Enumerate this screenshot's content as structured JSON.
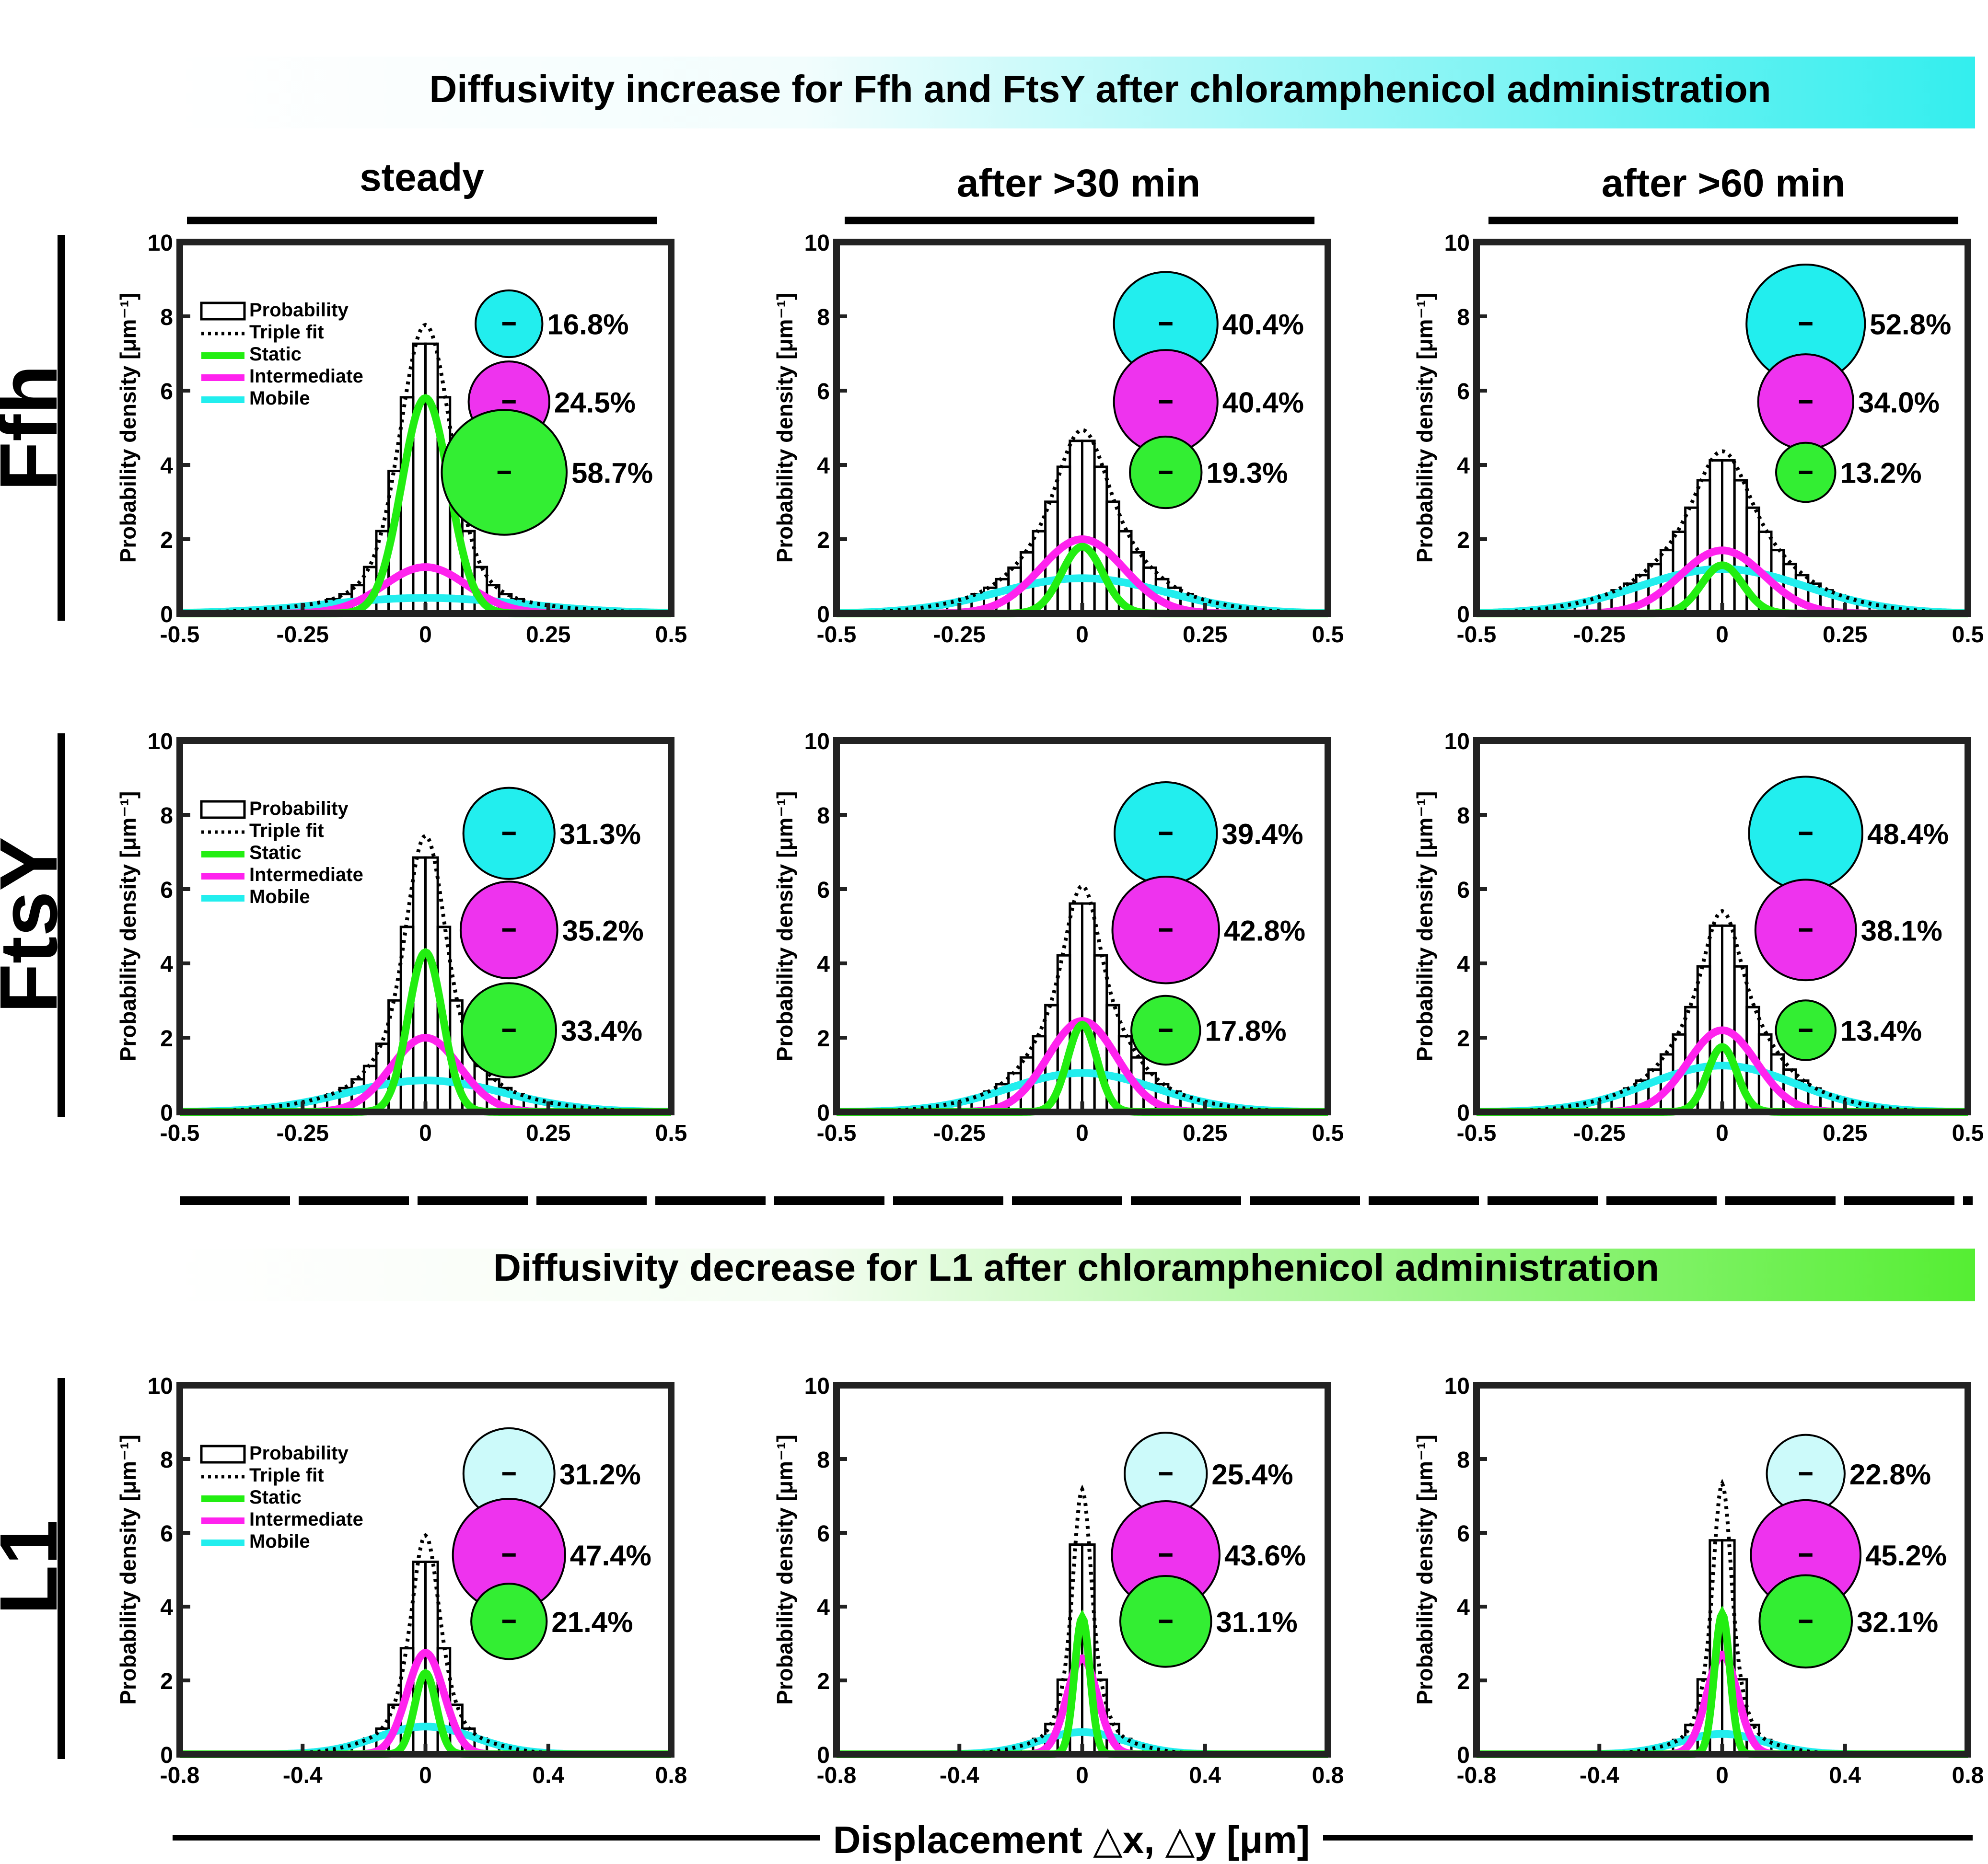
{
  "colors": {
    "histogram": "#000000",
    "fit": "#000000",
    "static": "#22ee11",
    "intermediate": "#ff22ee",
    "mobile": "#22eeee",
    "banner_cyan": "#33eeee",
    "banner_green": "#55ee33",
    "bubble_cyan_light": "#ccfafa",
    "bubble_magenta": "#ee33ee",
    "bubble_green": "#33ee33"
  },
  "figure": {
    "banner_top": "Diffusivity increase for Ffh and FtsY after chloramphenicol administration",
    "banner_bottom": "Diffusivity decrease for L1 after chloramphenicol administration",
    "x_axis_label": "Displacement △x, △y [μm]",
    "y_axis_label": "Probability density [μm⁻¹]",
    "column_titles": [
      "steady",
      "after >30 min",
      "after >60 min"
    ],
    "row_labels": [
      "Ffh",
      "FtsY",
      "L1"
    ],
    "legend": [
      "Probability",
      "Triple fit",
      "Static",
      "Intermediate",
      "Mobile"
    ]
  },
  "chart_data": [
    {
      "id": "ffh-steady",
      "type": "bar",
      "row": "Ffh",
      "condition": "steady",
      "xlim": [
        -0.5,
        0.5
      ],
      "ylim": [
        0,
        10
      ],
      "xticks": [
        "-0.5",
        "-0.25",
        "0",
        "0.25",
        "0.5"
      ],
      "yticks": [
        "0",
        "2",
        "4",
        "6",
        "8",
        "10"
      ],
      "components": {
        "static": {
          "amplitude": 5.8,
          "sigma": 0.048
        },
        "intermediate": {
          "amplitude": 1.25,
          "sigma": 0.085
        },
        "mobile": {
          "amplitude": 0.42,
          "sigma": 0.2
        }
      },
      "fractions": [
        {
          "component": "mobile",
          "label": "16.8%",
          "value": 16.8
        },
        {
          "component": "intermediate",
          "label": "24.5%",
          "value": 24.5
        },
        {
          "component": "static",
          "label": "58.7%",
          "value": 58.7
        }
      ],
      "legend_shown": true
    },
    {
      "id": "ffh-30",
      "type": "bar",
      "row": "Ffh",
      "condition": "after >30 min",
      "xlim": [
        -0.5,
        0.5
      ],
      "ylim": [
        0,
        10
      ],
      "xticks": [
        "-0.5",
        "-0.25",
        "0",
        "0.25",
        "0.5"
      ],
      "yticks": [
        "0",
        "2",
        "4",
        "6",
        "8",
        "10"
      ],
      "components": {
        "static": {
          "amplitude": 1.8,
          "sigma": 0.042
        },
        "intermediate": {
          "amplitude": 2.0,
          "sigma": 0.085
        },
        "mobile": {
          "amplitude": 0.95,
          "sigma": 0.17
        }
      },
      "fractions": [
        {
          "component": "mobile",
          "label": "40.4%",
          "value": 40.4
        },
        {
          "component": "intermediate",
          "label": "40.4%",
          "value": 40.4
        },
        {
          "component": "static",
          "label": "19.3%",
          "value": 19.3
        }
      ],
      "legend_shown": false
    },
    {
      "id": "ffh-60",
      "type": "bar",
      "row": "Ffh",
      "condition": "after >60 min",
      "xlim": [
        -0.5,
        0.5
      ],
      "ylim": [
        0,
        10
      ],
      "xticks": [
        "-0.5",
        "-0.25",
        "0",
        "0.25",
        "0.5"
      ],
      "yticks": [
        "0",
        "2",
        "4",
        "6",
        "8",
        "10"
      ],
      "components": {
        "static": {
          "amplitude": 1.3,
          "sigma": 0.042
        },
        "intermediate": {
          "amplitude": 1.7,
          "sigma": 0.085
        },
        "mobile": {
          "amplitude": 1.2,
          "sigma": 0.17
        }
      },
      "fractions": [
        {
          "component": "mobile",
          "label": "52.8%",
          "value": 52.8
        },
        {
          "component": "intermediate",
          "label": "34.0%",
          "value": 34.0
        },
        {
          "component": "static",
          "label": "13.2%",
          "value": 13.2
        }
      ],
      "legend_shown": false
    },
    {
      "id": "ftsy-steady",
      "type": "bar",
      "row": "FtsY",
      "condition": "steady",
      "xlim": [
        -0.5,
        0.5
      ],
      "ylim": [
        0,
        10
      ],
      "xticks": [
        "-0.5",
        "-0.25",
        "0",
        "0.25",
        "0.5"
      ],
      "yticks": [
        "0",
        "2",
        "4",
        "6",
        "8",
        "10"
      ],
      "components": {
        "static": {
          "amplitude": 4.3,
          "sigma": 0.035
        },
        "intermediate": {
          "amplitude": 2.0,
          "sigma": 0.07
        },
        "mobile": {
          "amplitude": 0.85,
          "sigma": 0.16
        }
      },
      "fractions": [
        {
          "component": "mobile",
          "label": "31.3%",
          "value": 31.3
        },
        {
          "component": "intermediate",
          "label": "35.2%",
          "value": 35.2
        },
        {
          "component": "static",
          "label": "33.4%",
          "value": 33.4
        }
      ],
      "legend_shown": true
    },
    {
      "id": "ftsy-30",
      "type": "bar",
      "row": "FtsY",
      "condition": "after >30 min",
      "xlim": [
        -0.5,
        0.5
      ],
      "ylim": [
        0,
        10
      ],
      "xticks": [
        "-0.5",
        "-0.25",
        "0",
        "0.25",
        "0.5"
      ],
      "yticks": [
        "0",
        "2",
        "4",
        "6",
        "8",
        "10"
      ],
      "components": {
        "static": {
          "amplitude": 2.35,
          "sigma": 0.03
        },
        "intermediate": {
          "amplitude": 2.45,
          "sigma": 0.07
        },
        "mobile": {
          "amplitude": 1.05,
          "sigma": 0.15
        }
      },
      "fractions": [
        {
          "component": "mobile",
          "label": "39.4%",
          "value": 39.4
        },
        {
          "component": "intermediate",
          "label": "42.8%",
          "value": 42.8
        },
        {
          "component": "static",
          "label": "17.8%",
          "value": 17.8
        }
      ],
      "legend_shown": false
    },
    {
      "id": "ftsy-60",
      "type": "bar",
      "row": "FtsY",
      "condition": "after >60 min",
      "xlim": [
        -0.5,
        0.5
      ],
      "ylim": [
        0,
        10
      ],
      "xticks": [
        "-0.5",
        "-0.25",
        "0",
        "0.25",
        "0.5"
      ],
      "yticks": [
        "0",
        "2",
        "4",
        "6",
        "8",
        "10"
      ],
      "components": {
        "static": {
          "amplitude": 1.75,
          "sigma": 0.03
        },
        "intermediate": {
          "amplitude": 2.2,
          "sigma": 0.07
        },
        "mobile": {
          "amplitude": 1.25,
          "sigma": 0.15
        }
      },
      "fractions": [
        {
          "component": "mobile",
          "label": "48.4%",
          "value": 48.4
        },
        {
          "component": "intermediate",
          "label": "38.1%",
          "value": 38.1
        },
        {
          "component": "static",
          "label": "13.4%",
          "value": 13.4
        }
      ],
      "legend_shown": false
    },
    {
      "id": "l1-steady",
      "type": "bar",
      "row": "L1",
      "condition": "steady",
      "xlim": [
        -0.8,
        0.8
      ],
      "ylim": [
        0,
        10
      ],
      "xticks": [
        "-0.8",
        "-0.4",
        "0",
        "0.4",
        "0.8"
      ],
      "yticks": [
        "0",
        "2",
        "4",
        "6",
        "8",
        "10"
      ],
      "components": {
        "static": {
          "amplitude": 2.2,
          "sigma": 0.035
        },
        "intermediate": {
          "amplitude": 2.75,
          "sigma": 0.06
        },
        "mobile": {
          "amplitude": 0.75,
          "sigma": 0.16
        }
      },
      "fractions": [
        {
          "component": "mobile",
          "label": "31.2%",
          "value": 31.2
        },
        {
          "component": "intermediate",
          "label": "47.4%",
          "value": 47.4
        },
        {
          "component": "static",
          "label": "21.4%",
          "value": 21.4
        }
      ],
      "legend_shown": true
    },
    {
      "id": "l1-30",
      "type": "bar",
      "row": "L1",
      "condition": "after >30 min",
      "xlim": [
        -0.8,
        0.8
      ],
      "ylim": [
        0,
        10
      ],
      "xticks": [
        "-0.8",
        "-0.4",
        "0",
        "0.4",
        "0.8"
      ],
      "yticks": [
        "0",
        "2",
        "4",
        "6",
        "8",
        "10"
      ],
      "components": {
        "static": {
          "amplitude": 3.7,
          "sigma": 0.025
        },
        "intermediate": {
          "amplitude": 2.6,
          "sigma": 0.05
        },
        "mobile": {
          "amplitude": 0.6,
          "sigma": 0.14
        }
      },
      "fractions": [
        {
          "component": "mobile",
          "label": "25.4%",
          "value": 25.4
        },
        {
          "component": "intermediate",
          "label": "43.6%",
          "value": 43.6
        },
        {
          "component": "static",
          "label": "31.1%",
          "value": 31.1
        }
      ],
      "legend_shown": false
    },
    {
      "id": "l1-60",
      "type": "bar",
      "row": "L1",
      "condition": "after >60 min",
      "xlim": [
        -0.8,
        0.8
      ],
      "ylim": [
        0,
        10
      ],
      "xticks": [
        "-0.8",
        "-0.4",
        "0",
        "0.4",
        "0.8"
      ],
      "yticks": [
        "0",
        "2",
        "4",
        "6",
        "8",
        "10"
      ],
      "components": {
        "static": {
          "amplitude": 3.8,
          "sigma": 0.025
        },
        "intermediate": {
          "amplitude": 2.7,
          "sigma": 0.05
        },
        "mobile": {
          "amplitude": 0.55,
          "sigma": 0.14
        }
      },
      "fractions": [
        {
          "component": "mobile",
          "label": "22.8%",
          "value": 22.8
        },
        {
          "component": "intermediate",
          "label": "45.2%",
          "value": 45.2
        },
        {
          "component": "static",
          "label": "32.1%",
          "value": 32.1
        }
      ],
      "legend_shown": false
    }
  ]
}
